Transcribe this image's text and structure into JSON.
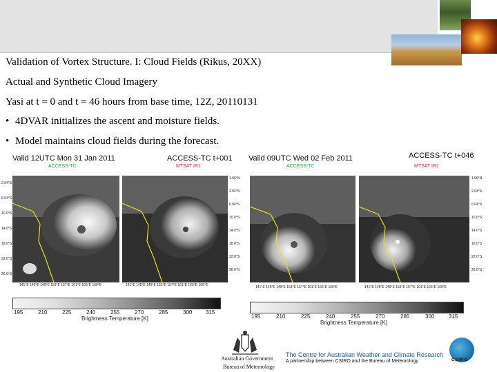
{
  "header": {
    "title": "Validation of Vortex Structure. I: Cloud Fields (Rikus, 20XX)",
    "line2": "Actual and Synthetic Cloud Imagery",
    "line3": "Yasi at t = 0 and t = 46 hours from base time, 12Z, 20110131"
  },
  "bullets": [
    "4DVAR initializes the ascent and moisture fields.",
    "Model maintains cloud fields during the forecast."
  ],
  "figure": {
    "left": {
      "valid": "Valid 12UTC Mon 31 Jan 2011",
      "model": "ACCESS-TC  t+001",
      "sub_model": "ACCESS-TC",
      "sub_obs": "MTSAT IR1",
      "lat_labels": [
        "2.04°S",
        "6.04°S",
        "10.0°S",
        "14.0°S",
        "18.0°S",
        "22.0°S",
        "26.0°S"
      ],
      "mid_lat_labels": [
        "1.96°N",
        "2.04°S",
        "6.04°S",
        "10.0°S",
        "14.0°S",
        "18.0°S",
        "22.0°S",
        "26.0°S"
      ],
      "left_lat_labels": [
        "2.04°S",
        "6.04°S",
        "10.0°S",
        "14.0°S",
        "18.0°S",
        "22.0°S",
        "26.0°S"
      ],
      "lon_labels_a": "141°E 145°E 149°E 153°E 157°E 161°E 165°E 169°E",
      "lon_labels_b": "141°E 145°E 149°E 153°E 157°E 161°E 165°E 169°E"
    },
    "right": {
      "valid": "Valid 09UTC Wed 02 Feb 2011",
      "model": "ACCESS-TC  t+046",
      "sub_model": "ACCESS-TC",
      "sub_obs": "MTSAT IR1",
      "mid_lat_labels": [
        "1.96°N",
        "2.04°S",
        "6.04°S",
        "10.0°S",
        "14.0°S",
        "18.0°S",
        "22.0°S",
        "26.0°S"
      ],
      "right_lat_labels": [
        "1.96°N",
        "2.04°S",
        "6.04°S",
        "10.0°S",
        "14.0°S",
        "18.0°S",
        "22.0°S",
        "26.0°S"
      ],
      "lon_labels_a": "141°E 145°E 149°E 153°E 157°E 161°E 165°E 169°E",
      "lon_labels_b": "141°E 145°E 149°E 153°E 157°E 161°E 165°E 169°E"
    },
    "colorbar": {
      "ticks": [
        "195",
        "210",
        "225",
        "240",
        "255",
        "270",
        "285",
        "300",
        "315"
      ],
      "title": "Brightness Temperature [K]"
    }
  },
  "footer": {
    "gov_line1": "Australian Government",
    "gov_line2": "Bureau of Meteorology",
    "cawcr_title": "The Centre for Australian Weather and Climate Research",
    "cawcr_sub": "A partnership between CSIRO and the Bureau of Meteorology",
    "csiro": "CSIRO"
  },
  "colors": {
    "header_band": "#e3e3e3",
    "cawcr_blue": "#1a5aa6",
    "sub_green": "#2a9a3a",
    "sub_red": "#c8282a",
    "coast": "#e8e020"
  }
}
